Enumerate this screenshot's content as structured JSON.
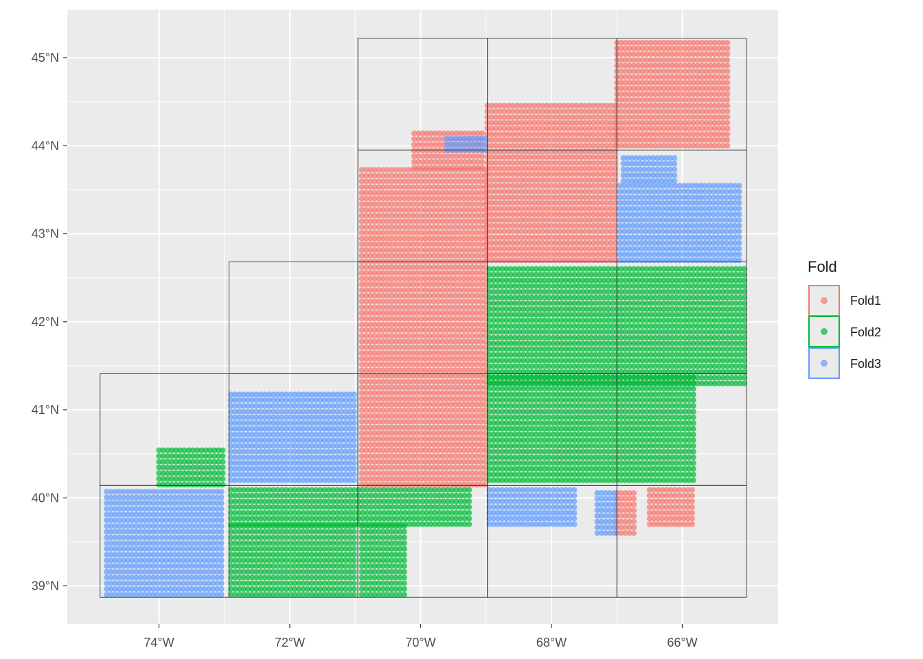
{
  "chart_data": {
    "type": "scatter",
    "title": "",
    "xlabel": "",
    "ylabel": "",
    "xlim": [
      -75.4,
      -64.8
    ],
    "ylim": [
      38.6,
      45.5
    ],
    "x_ticks": [
      -74,
      -72,
      -70,
      -68,
      -66
    ],
    "x_tick_labels": [
      "74°W",
      "72°W",
      "70°W",
      "68°W",
      "66°W"
    ],
    "y_ticks": [
      39,
      40,
      41,
      42,
      43,
      44,
      45
    ],
    "y_tick_labels": [
      "39°N",
      "40°N",
      "41°N",
      "42°N",
      "43°N",
      "44°N",
      "45°N"
    ],
    "grid": true,
    "legend": {
      "title": "Fold",
      "position": "right",
      "entries": [
        {
          "name": "Fold1",
          "color": "#F8766D"
        },
        {
          "name": "Fold2",
          "color": "#00BA38"
        },
        {
          "name": "Fold3",
          "color": "#619CFF"
        }
      ]
    },
    "grid_lines_lon": [
      -74.9,
      -72.93,
      -70.96,
      -68.98,
      -67.0,
      -65.02
    ],
    "grid_lines_lat": [
      38.87,
      40.14,
      41.41,
      42.68,
      43.95,
      45.22
    ],
    "blocks": [
      {
        "lon": [
          -74.9,
          -72.93
        ],
        "lat": [
          38.87,
          40.14
        ],
        "fold": "Fold3"
      },
      {
        "lon": [
          -72.93,
          -70.96
        ],
        "lat": [
          38.87,
          40.14
        ],
        "fold": "Fold2"
      },
      {
        "lon": [
          -70.96,
          -68.98
        ],
        "lat": [
          38.87,
          40.14
        ],
        "fold": "Fold2"
      },
      {
        "lon": [
          -68.98,
          -67.0
        ],
        "lat": [
          38.87,
          40.14
        ],
        "fold": "Fold3"
      },
      {
        "lon": [
          -67.0,
          -65.02
        ],
        "lat": [
          38.87,
          40.14
        ],
        "fold": "Fold1"
      },
      {
        "lon": [
          -74.9,
          -72.93
        ],
        "lat": [
          40.14,
          41.41
        ],
        "fold": "Fold2"
      },
      {
        "lon": [
          -72.93,
          -70.96
        ],
        "lat": [
          40.14,
          41.41
        ],
        "fold": "Fold3"
      },
      {
        "lon": [
          -70.96,
          -68.98
        ],
        "lat": [
          40.14,
          41.41
        ],
        "fold": "Fold1"
      },
      {
        "lon": [
          -68.98,
          -67.0
        ],
        "lat": [
          40.14,
          41.41
        ],
        "fold": "Fold2"
      },
      {
        "lon": [
          -67.0,
          -65.02
        ],
        "lat": [
          40.14,
          41.41
        ],
        "fold": "Fold2"
      },
      {
        "lon": [
          -72.93,
          -70.96
        ],
        "lat": [
          41.41,
          42.68
        ],
        "fold": "Fold3"
      },
      {
        "lon": [
          -70.96,
          -68.98
        ],
        "lat": [
          41.41,
          42.68
        ],
        "fold": "Fold1"
      },
      {
        "lon": [
          -68.98,
          -67.0
        ],
        "lat": [
          41.41,
          42.68
        ],
        "fold": "Fold2"
      },
      {
        "lon": [
          -67.0,
          -65.02
        ],
        "lat": [
          41.41,
          42.68
        ],
        "fold": "Fold2"
      },
      {
        "lon": [
          -70.96,
          -68.98
        ],
        "lat": [
          42.68,
          43.95
        ],
        "fold": "Fold1"
      },
      {
        "lon": [
          -68.98,
          -67.0
        ],
        "lat": [
          42.68,
          43.95
        ],
        "fold": "Fold1"
      },
      {
        "lon": [
          -67.0,
          -65.02
        ],
        "lat": [
          42.68,
          43.95
        ],
        "fold": "Fold3"
      },
      {
        "lon": [
          -70.96,
          -68.98
        ],
        "lat": [
          43.95,
          45.22
        ],
        "fold": "Fold3"
      },
      {
        "lon": [
          -68.98,
          -67.0
        ],
        "lat": [
          43.95,
          45.22
        ],
        "fold": "Fold1"
      },
      {
        "lon": [
          -67.0,
          -65.02
        ],
        "lat": [
          43.95,
          45.22
        ],
        "fold": "Fold1"
      }
    ],
    "point_regions": [
      {
        "fold": "Fold1",
        "lon": [
          -70.9,
          -69.0
        ],
        "lat": [
          40.15,
          43.75
        ]
      },
      {
        "fold": "Fold1",
        "lon": [
          -68.98,
          -67.0
        ],
        "lat": [
          42.7,
          44.5
        ]
      },
      {
        "fold": "Fold1",
        "lon": [
          -67.0,
          -65.3
        ],
        "lat": [
          44.0,
          45.2
        ]
      },
      {
        "fold": "Fold1",
        "lon": [
          -70.1,
          -69.0
        ],
        "lat": [
          43.75,
          44.2
        ]
      },
      {
        "fold": "Fold1",
        "lon": [
          -67.0,
          -66.7
        ],
        "lat": [
          39.6,
          40.1
        ]
      },
      {
        "fold": "Fold1",
        "lon": [
          -66.5,
          -65.8
        ],
        "lat": [
          39.7,
          40.1
        ]
      },
      {
        "fold": "Fold2",
        "lon": [
          -68.95,
          -65.0
        ],
        "lat": [
          41.3,
          42.65
        ]
      },
      {
        "fold": "Fold2",
        "lon": [
          -68.95,
          -65.8
        ],
        "lat": [
          40.2,
          41.4
        ]
      },
      {
        "fold": "Fold2",
        "lon": [
          -72.9,
          -69.2
        ],
        "lat": [
          39.7,
          40.12
        ]
      },
      {
        "fold": "Fold2",
        "lon": [
          -72.9,
          -71.0
        ],
        "lat": [
          38.9,
          39.7
        ]
      },
      {
        "fold": "Fold2",
        "lon": [
          -70.9,
          -70.2
        ],
        "lat": [
          38.9,
          39.7
        ]
      },
      {
        "fold": "Fold2",
        "lon": [
          -74.0,
          -73.0
        ],
        "lat": [
          40.15,
          40.55
        ]
      },
      {
        "fold": "Fold3",
        "lon": [
          -74.8,
          -73.0
        ],
        "lat": [
          38.9,
          40.12
        ]
      },
      {
        "fold": "Fold3",
        "lon": [
          -72.9,
          -71.0
        ],
        "lat": [
          40.2,
          41.2
        ]
      },
      {
        "fold": "Fold3",
        "lon": [
          -66.95,
          -65.1
        ],
        "lat": [
          42.7,
          43.6
        ]
      },
      {
        "fold": "Fold3",
        "lon": [
          -66.9,
          -66.1
        ],
        "lat": [
          43.6,
          43.9
        ]
      },
      {
        "fold": "Fold3",
        "lon": [
          -68.95,
          -67.6
        ],
        "lat": [
          39.7,
          40.1
        ]
      },
      {
        "fold": "Fold3",
        "lon": [
          -67.3,
          -67.0
        ],
        "lat": [
          39.6,
          40.1
        ]
      },
      {
        "fold": "Fold3",
        "lon": [
          -69.6,
          -69.0
        ],
        "lat": [
          43.95,
          44.1
        ]
      }
    ]
  }
}
